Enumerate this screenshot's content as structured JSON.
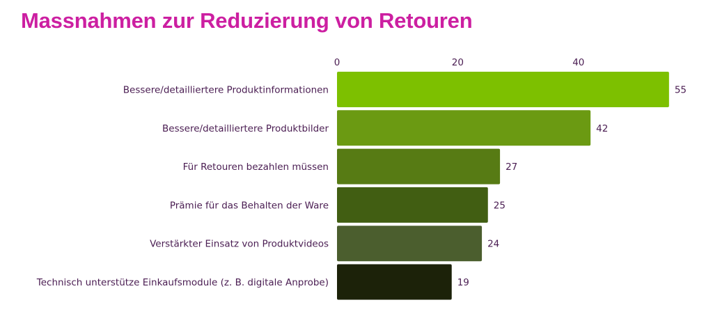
{
  "colors": {
    "title": "#cc1fa1",
    "text": "#4a1d52",
    "bars": [
      "#7dc000",
      "#6b9a12",
      "#577b14",
      "#415e12",
      "#4b5e2e",
      "#1c2209"
    ]
  },
  "chart_data": {
    "type": "bar",
    "orientation": "horizontal",
    "title": "Massnahmen zur Reduzierung von Retouren",
    "xlabel": "",
    "ylabel": "",
    "x_axis_position": "top",
    "xlim": [
      0,
      55
    ],
    "x_ticks": [
      0,
      20,
      40
    ],
    "grid": false,
    "categories": [
      "Bessere/detailliertere Produktinformationen",
      "Bessere/detailliertere Produktbilder",
      "Für Retouren bezahlen müssen",
      "Prämie für das Behalten der Ware",
      "Verstärkter Einsatz von Produktvideos",
      "Technisch unterstütze Einkaufsmodule (z. B. digitale Anprobe)"
    ],
    "values": [
      55,
      42,
      27,
      25,
      24,
      19
    ]
  }
}
